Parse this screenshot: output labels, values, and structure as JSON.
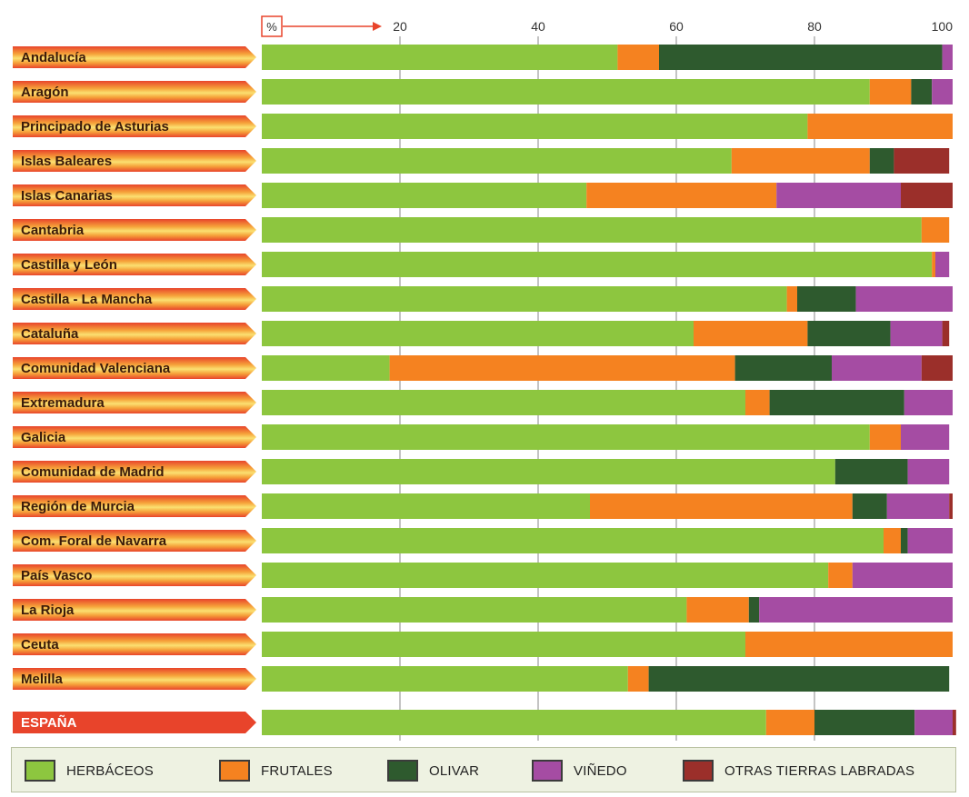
{
  "chart_data": {
    "type": "bar",
    "orientation": "horizontal",
    "stacked": true,
    "axis_unit_label": "%",
    "xlim": [
      0,
      100
    ],
    "x_ticks": [
      20,
      40,
      60,
      80,
      100
    ],
    "grid": true,
    "legend_position": "bottom",
    "categories": [
      "Andalucía",
      "Aragón",
      "Principado de Asturias",
      "Islas Baleares",
      "Islas Canarias",
      "Cantabria",
      "Castilla y León",
      "Castilla - La Mancha",
      "Cataluña",
      "Comunidad Valenciana",
      "Extremadura",
      "Galicia",
      "Comunidad de Madrid",
      "Región de Murcia",
      "Com. Foral de Navarra",
      "País Vasco",
      "La Rioja",
      "Ceuta",
      "Melilla",
      "ESPAÑA"
    ],
    "highlight_category": "ESPAÑA",
    "series": [
      {
        "name": "HERBÁCEOS",
        "color": "#8dc63f",
        "values": [
          51.5,
          88,
          79,
          68,
          47,
          95.5,
          97,
          76,
          62.5,
          18.5,
          70,
          88,
          83,
          47.5,
          90,
          82,
          61.5,
          70,
          53,
          73
        ]
      },
      {
        "name": "FRUTALES",
        "color": "#f58220",
        "values": [
          6,
          6,
          21,
          20,
          27.5,
          4,
          0.5,
          1.5,
          16.5,
          50,
          3.5,
          4.5,
          0,
          38,
          2.5,
          3.5,
          9,
          30,
          3,
          7
        ]
      },
      {
        "name": "OLIVAR",
        "color": "#2e5a2e",
        "values": [
          41,
          3,
          0,
          3.5,
          0,
          0,
          0,
          8.5,
          12,
          14,
          19.5,
          0,
          10.5,
          5,
          1,
          0,
          1.5,
          0,
          43.5,
          14.5
        ]
      },
      {
        "name": "VIÑEDO",
        "color": "#a54ca3",
        "values": [
          1.5,
          3,
          0,
          0,
          18,
          0,
          2,
          14,
          7.5,
          13,
          7,
          7,
          6,
          9,
          6.5,
          14.5,
          28,
          0,
          0,
          5.5
        ]
      },
      {
        "name": "OTRAS TIERRAS LABRADAS",
        "color": "#9b2f2a",
        "values": [
          0,
          0,
          0,
          8,
          7.5,
          0,
          0,
          0,
          1,
          4.5,
          0,
          0,
          0,
          0.5,
          0,
          0,
          0,
          0,
          0,
          0.5
        ]
      }
    ]
  }
}
